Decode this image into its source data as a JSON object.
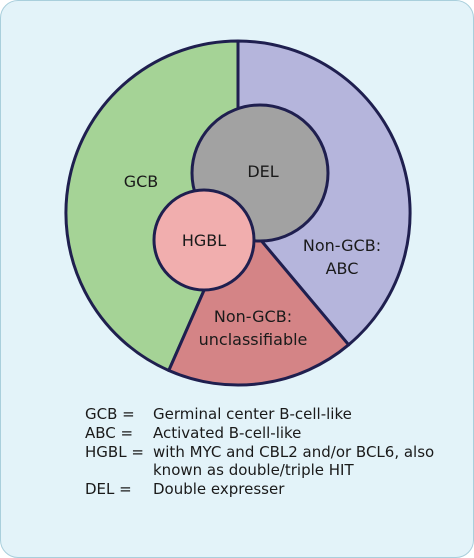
{
  "colors": {
    "panel_bg": "#e3f3f9",
    "outline": "#1f1f4f",
    "gcb": "#a5d396",
    "non_gcb_abc": "#b5b5dc",
    "non_gcb_unclassifiable": "#d48486",
    "del": "#a2a2a2",
    "hgbl": "#f1aeae"
  },
  "diagram": {
    "segments": {
      "gcb": "GCB",
      "non_gcb_abc_line1": "Non-GCB:",
      "non_gcb_abc_line2": "ABC",
      "non_gcb_unclass_line1": "Non-GCB:",
      "non_gcb_unclass_line2": "unclassifiable",
      "del": "DEL",
      "hgbl": "HGBL"
    }
  },
  "legend": [
    {
      "term": "GCB =",
      "definition": "Germinal center B-cell-like"
    },
    {
      "term": "ABC =",
      "definition": "Activated B-cell-like"
    },
    {
      "term": "HGBL =",
      "definition": "with MYC and CBL2 and/or BCL6, also known as double/triple HIT"
    },
    {
      "term": "DEL =",
      "definition": "Double expresser"
    }
  ]
}
